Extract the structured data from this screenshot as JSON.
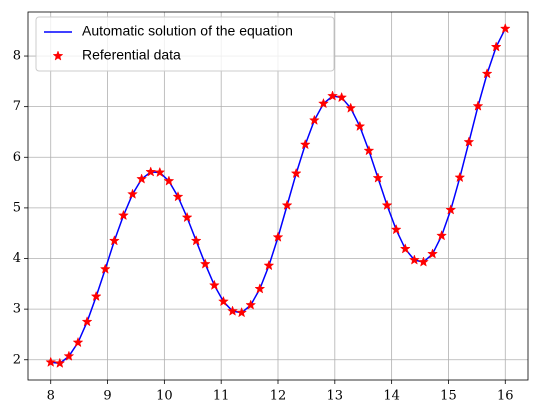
{
  "chart_data": {
    "type": "line",
    "x": [
      8,
      8.16,
      8.32,
      8.48,
      8.64,
      8.8,
      8.96,
      9.12,
      9.28,
      9.44,
      9.6,
      9.76,
      9.92,
      10.08,
      10.24,
      10.4,
      10.56,
      10.72,
      10.88,
      11.04,
      11.2,
      11.36,
      11.52,
      11.68,
      11.84,
      12,
      12.16,
      12.32,
      12.48,
      12.64,
      12.8,
      12.96,
      13.12,
      13.28,
      13.44,
      13.6,
      13.76,
      13.92,
      14.08,
      14.24,
      14.4,
      14.56,
      14.72,
      14.88,
      15.04,
      15.2,
      15.36,
      15.52,
      15.68,
      15.84,
      16
    ],
    "series": [
      {
        "name": "Automatic solution of the equation",
        "color": "#0000ff",
        "style": "line",
        "values": [
          1.95,
          1.93,
          2.07,
          2.34,
          2.75,
          3.25,
          3.79,
          4.35,
          4.85,
          5.27,
          5.57,
          5.71,
          5.7,
          5.53,
          5.22,
          4.81,
          4.35,
          3.89,
          3.47,
          3.15,
          2.96,
          2.93,
          3.08,
          3.4,
          3.86,
          4.42,
          5.05,
          5.68,
          6.25,
          6.73,
          7.06,
          7.21,
          7.18,
          6.97,
          6.61,
          6.13,
          5.59,
          5.05,
          4.57,
          4.19,
          3.97,
          3.93,
          4.09,
          4.45,
          4.96,
          5.6,
          6.3,
          7.01,
          7.65,
          8.18,
          8.54
        ]
      },
      {
        "name": "Referential data",
        "color": "#ff0000",
        "style": "marker",
        "values": [
          1.95,
          1.93,
          2.07,
          2.34,
          2.75,
          3.25,
          3.79,
          4.35,
          4.85,
          5.27,
          5.57,
          5.71,
          5.7,
          5.53,
          5.22,
          4.81,
          4.35,
          3.89,
          3.47,
          3.15,
          2.96,
          2.93,
          3.08,
          3.4,
          3.86,
          4.42,
          5.05,
          5.68,
          6.25,
          6.73,
          7.06,
          7.21,
          7.18,
          6.97,
          6.61,
          6.13,
          5.59,
          5.05,
          4.57,
          4.19,
          3.97,
          3.93,
          4.09,
          4.45,
          4.96,
          5.6,
          6.3,
          7.01,
          7.65,
          8.18,
          8.54
        ]
      }
    ],
    "xlim": [
      7.6,
      16.4
    ],
    "xticks": [
      8,
      9,
      10,
      11,
      12,
      13,
      14,
      15,
      16
    ],
    "ylim": [
      1.6,
      8.87
    ],
    "yticks": [
      2,
      3,
      4,
      5,
      6,
      7,
      8
    ],
    "grid": true,
    "legend": "upper left"
  }
}
